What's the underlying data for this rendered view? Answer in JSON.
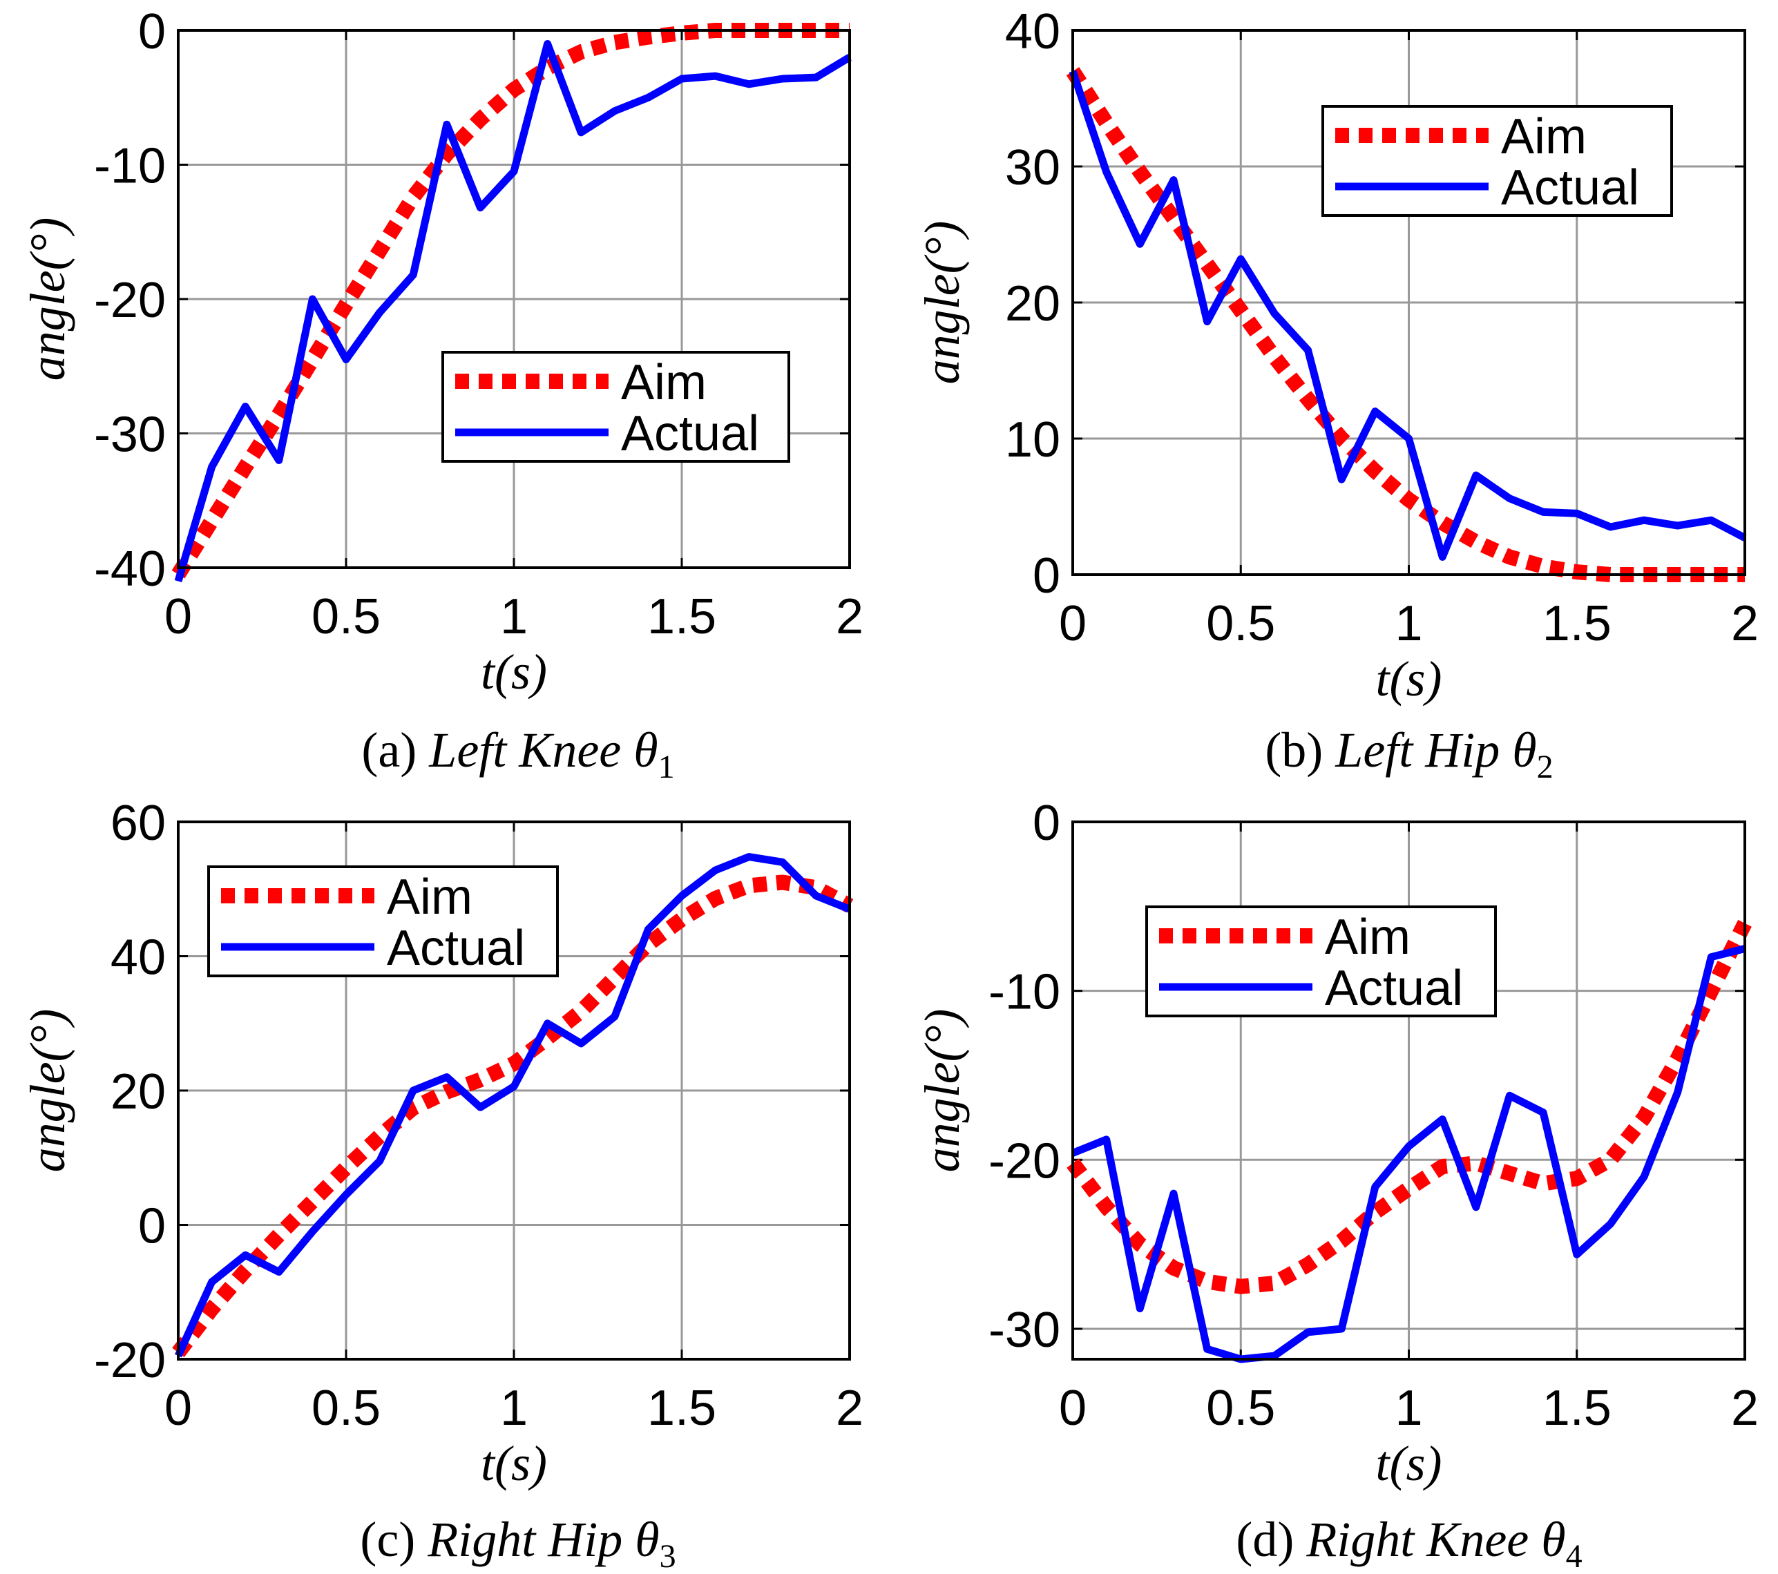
{
  "chart_data": [
    {
      "type": "line",
      "caption": {
        "prefix": "(a) ",
        "text": "Left Knee ",
        "symbol": "θ",
        "subscript": "1"
      },
      "xlabel": "t(s)",
      "ylabel": "angle(°)",
      "xlim": [
        0,
        2
      ],
      "ylim": [
        -40,
        0
      ],
      "xticks": [
        0,
        0.5,
        1,
        1.5,
        2
      ],
      "xtick_labels": [
        "0",
        "0.5",
        "1",
        "1.5",
        "2"
      ],
      "yticks": [
        -40,
        -30,
        -20,
        -10,
        0
      ],
      "ytick_labels": [
        "-40",
        "-30",
        "-20",
        "-10",
        "0"
      ],
      "grid": true,
      "legend_position": "center-right",
      "x": [
        0,
        0.1,
        0.2,
        0.3,
        0.4,
        0.5,
        0.6,
        0.7,
        0.8,
        0.9,
        1.0,
        1.1,
        1.2,
        1.3,
        1.4,
        1.5,
        1.6,
        1.7,
        1.8,
        1.9,
        2.0
      ],
      "series": [
        {
          "name": "Aim",
          "style": "dotted",
          "color": "#ff0000",
          "values": [
            -40.5,
            -36.5,
            -32.5,
            -28.6,
            -24.5,
            -20.4,
            -16.4,
            -12.4,
            -9.2,
            -6.6,
            -4.4,
            -2.8,
            -1.6,
            -0.9,
            -0.5,
            -0.2,
            0,
            0,
            0,
            0,
            0
          ]
        },
        {
          "name": "Actual",
          "style": "solid",
          "color": "#0000ff",
          "values": [
            -41.0,
            -32.5,
            -28.0,
            -32.0,
            -20.0,
            -24.5,
            -21.0,
            -18.2,
            -7.0,
            -13.2,
            -10.5,
            -1.0,
            -7.6,
            -6.0,
            -5.0,
            -3.6,
            -3.4,
            -4.0,
            -3.6,
            -3.5,
            -2.0
          ]
        }
      ]
    },
    {
      "type": "line",
      "caption": {
        "prefix": "(b) ",
        "text": "Left Hip ",
        "symbol": "θ",
        "subscript": "2"
      },
      "xlabel": "t(s)",
      "ylabel": "angle(°)",
      "xlim": [
        0,
        2
      ],
      "ylim": [
        0,
        40
      ],
      "xticks": [
        0,
        0.5,
        1,
        1.5,
        2
      ],
      "xtick_labels": [
        "0",
        "0.5",
        "1",
        "1.5",
        "2"
      ],
      "yticks": [
        0,
        10,
        20,
        30,
        40
      ],
      "ytick_labels": [
        "0",
        "10",
        "20",
        "30",
        "40"
      ],
      "grid": true,
      "legend_position": "top-right",
      "x": [
        0,
        0.1,
        0.2,
        0.3,
        0.4,
        0.5,
        0.6,
        0.7,
        0.8,
        0.9,
        1.0,
        1.1,
        1.2,
        1.3,
        1.4,
        1.5,
        1.6,
        1.7,
        1.8,
        1.9,
        2.0
      ],
      "series": [
        {
          "name": "Aim",
          "style": "dotted",
          "color": "#ff0000",
          "values": [
            37.0,
            33.2,
            29.6,
            26.2,
            22.8,
            19.4,
            16.0,
            12.9,
            10.0,
            7.6,
            5.5,
            3.8,
            2.4,
            1.3,
            0.6,
            0.2,
            0,
            0,
            0,
            0,
            0
          ]
        },
        {
          "name": "Actual",
          "style": "solid",
          "color": "#0000ff",
          "values": [
            37.0,
            29.6,
            24.3,
            29.0,
            18.6,
            23.2,
            19.2,
            16.5,
            7.0,
            12.0,
            10.0,
            1.3,
            7.3,
            5.6,
            4.6,
            4.5,
            3.5,
            4.0,
            3.6,
            4.0,
            2.7
          ]
        }
      ]
    },
    {
      "type": "line",
      "caption": {
        "prefix": "(c) ",
        "text": "Right Hip ",
        "symbol": "θ",
        "subscript": "3"
      },
      "xlabel": "t(s)",
      "ylabel": "angle(°)",
      "xlim": [
        0,
        2
      ],
      "ylim": [
        -20,
        60
      ],
      "xticks": [
        0,
        0.5,
        1,
        1.5,
        2
      ],
      "xtick_labels": [
        "0",
        "0.5",
        "1",
        "1.5",
        "2"
      ],
      "yticks": [
        -20,
        0,
        20,
        40,
        60
      ],
      "ytick_labels": [
        "-20",
        "0",
        "20",
        "40",
        "60"
      ],
      "grid": true,
      "legend_position": "top-left",
      "x": [
        0,
        0.1,
        0.2,
        0.3,
        0.4,
        0.5,
        0.6,
        0.7,
        0.8,
        0.9,
        1.0,
        1.1,
        1.2,
        1.3,
        1.4,
        1.5,
        1.6,
        1.7,
        1.8,
        1.9,
        2.0
      ],
      "series": [
        {
          "name": "Aim",
          "style": "dotted",
          "color": "#ff0000",
          "values": [
            -19.0,
            -12.5,
            -6.8,
            -1.5,
            3.5,
            8.5,
            13.2,
            17.4,
            19.8,
            21.6,
            24.0,
            27.8,
            31.8,
            36.8,
            41.8,
            45.5,
            48.6,
            50.5,
            51.0,
            50.2,
            47.5
          ]
        },
        {
          "name": "Actual",
          "style": "solid",
          "color": "#0000ff",
          "values": [
            -19.5,
            -8.5,
            -4.5,
            -7.0,
            -1.0,
            4.5,
            9.5,
            20.0,
            22.0,
            17.5,
            20.6,
            30.0,
            27.0,
            31.0,
            44.0,
            49.0,
            52.8,
            54.8,
            54.0,
            49.0,
            47.0
          ]
        }
      ]
    },
    {
      "type": "line",
      "caption": {
        "prefix": "(d) ",
        "text": "Right Knee ",
        "symbol": "θ",
        "subscript": "4"
      },
      "xlabel": "t(s)",
      "ylabel": "angle(°)",
      "xlim": [
        0,
        2
      ],
      "ylim": [
        -31.8,
        0
      ],
      "xticks": [
        0,
        0.5,
        1,
        1.5,
        2
      ],
      "xtick_labels": [
        "0",
        "0.5",
        "1",
        "1.5",
        "2"
      ],
      "yticks": [
        -30,
        -20,
        -10,
        0
      ],
      "ytick_labels": [
        "-30",
        "-20",
        "-10",
        "0"
      ],
      "grid": true,
      "legend_position": "upper-center",
      "x": [
        0,
        0.1,
        0.2,
        0.3,
        0.4,
        0.5,
        0.6,
        0.7,
        0.8,
        0.9,
        1.0,
        1.1,
        1.2,
        1.3,
        1.4,
        1.5,
        1.6,
        1.7,
        1.8,
        1.9,
        2.0
      ],
      "series": [
        {
          "name": "Aim",
          "style": "dotted",
          "color": "#ff0000",
          "values": [
            -20.2,
            -22.8,
            -25.0,
            -26.4,
            -27.2,
            -27.5,
            -27.3,
            -26.2,
            -24.8,
            -23.1,
            -21.7,
            -20.4,
            -20.2,
            -20.8,
            -21.4,
            -21.1,
            -20.0,
            -17.5,
            -14.0,
            -10.0,
            -6.0
          ]
        },
        {
          "name": "Actual",
          "style": "solid",
          "color": "#0000ff",
          "values": [
            -19.6,
            -18.8,
            -28.8,
            -22.0,
            -31.2,
            -31.8,
            -31.6,
            -30.2,
            -30.0,
            -21.6,
            -19.2,
            -17.6,
            -22.8,
            -16.2,
            -17.2,
            -25.6,
            -23.8,
            -21.0,
            -16.0,
            -8.0,
            -7.5
          ]
        }
      ]
    }
  ]
}
